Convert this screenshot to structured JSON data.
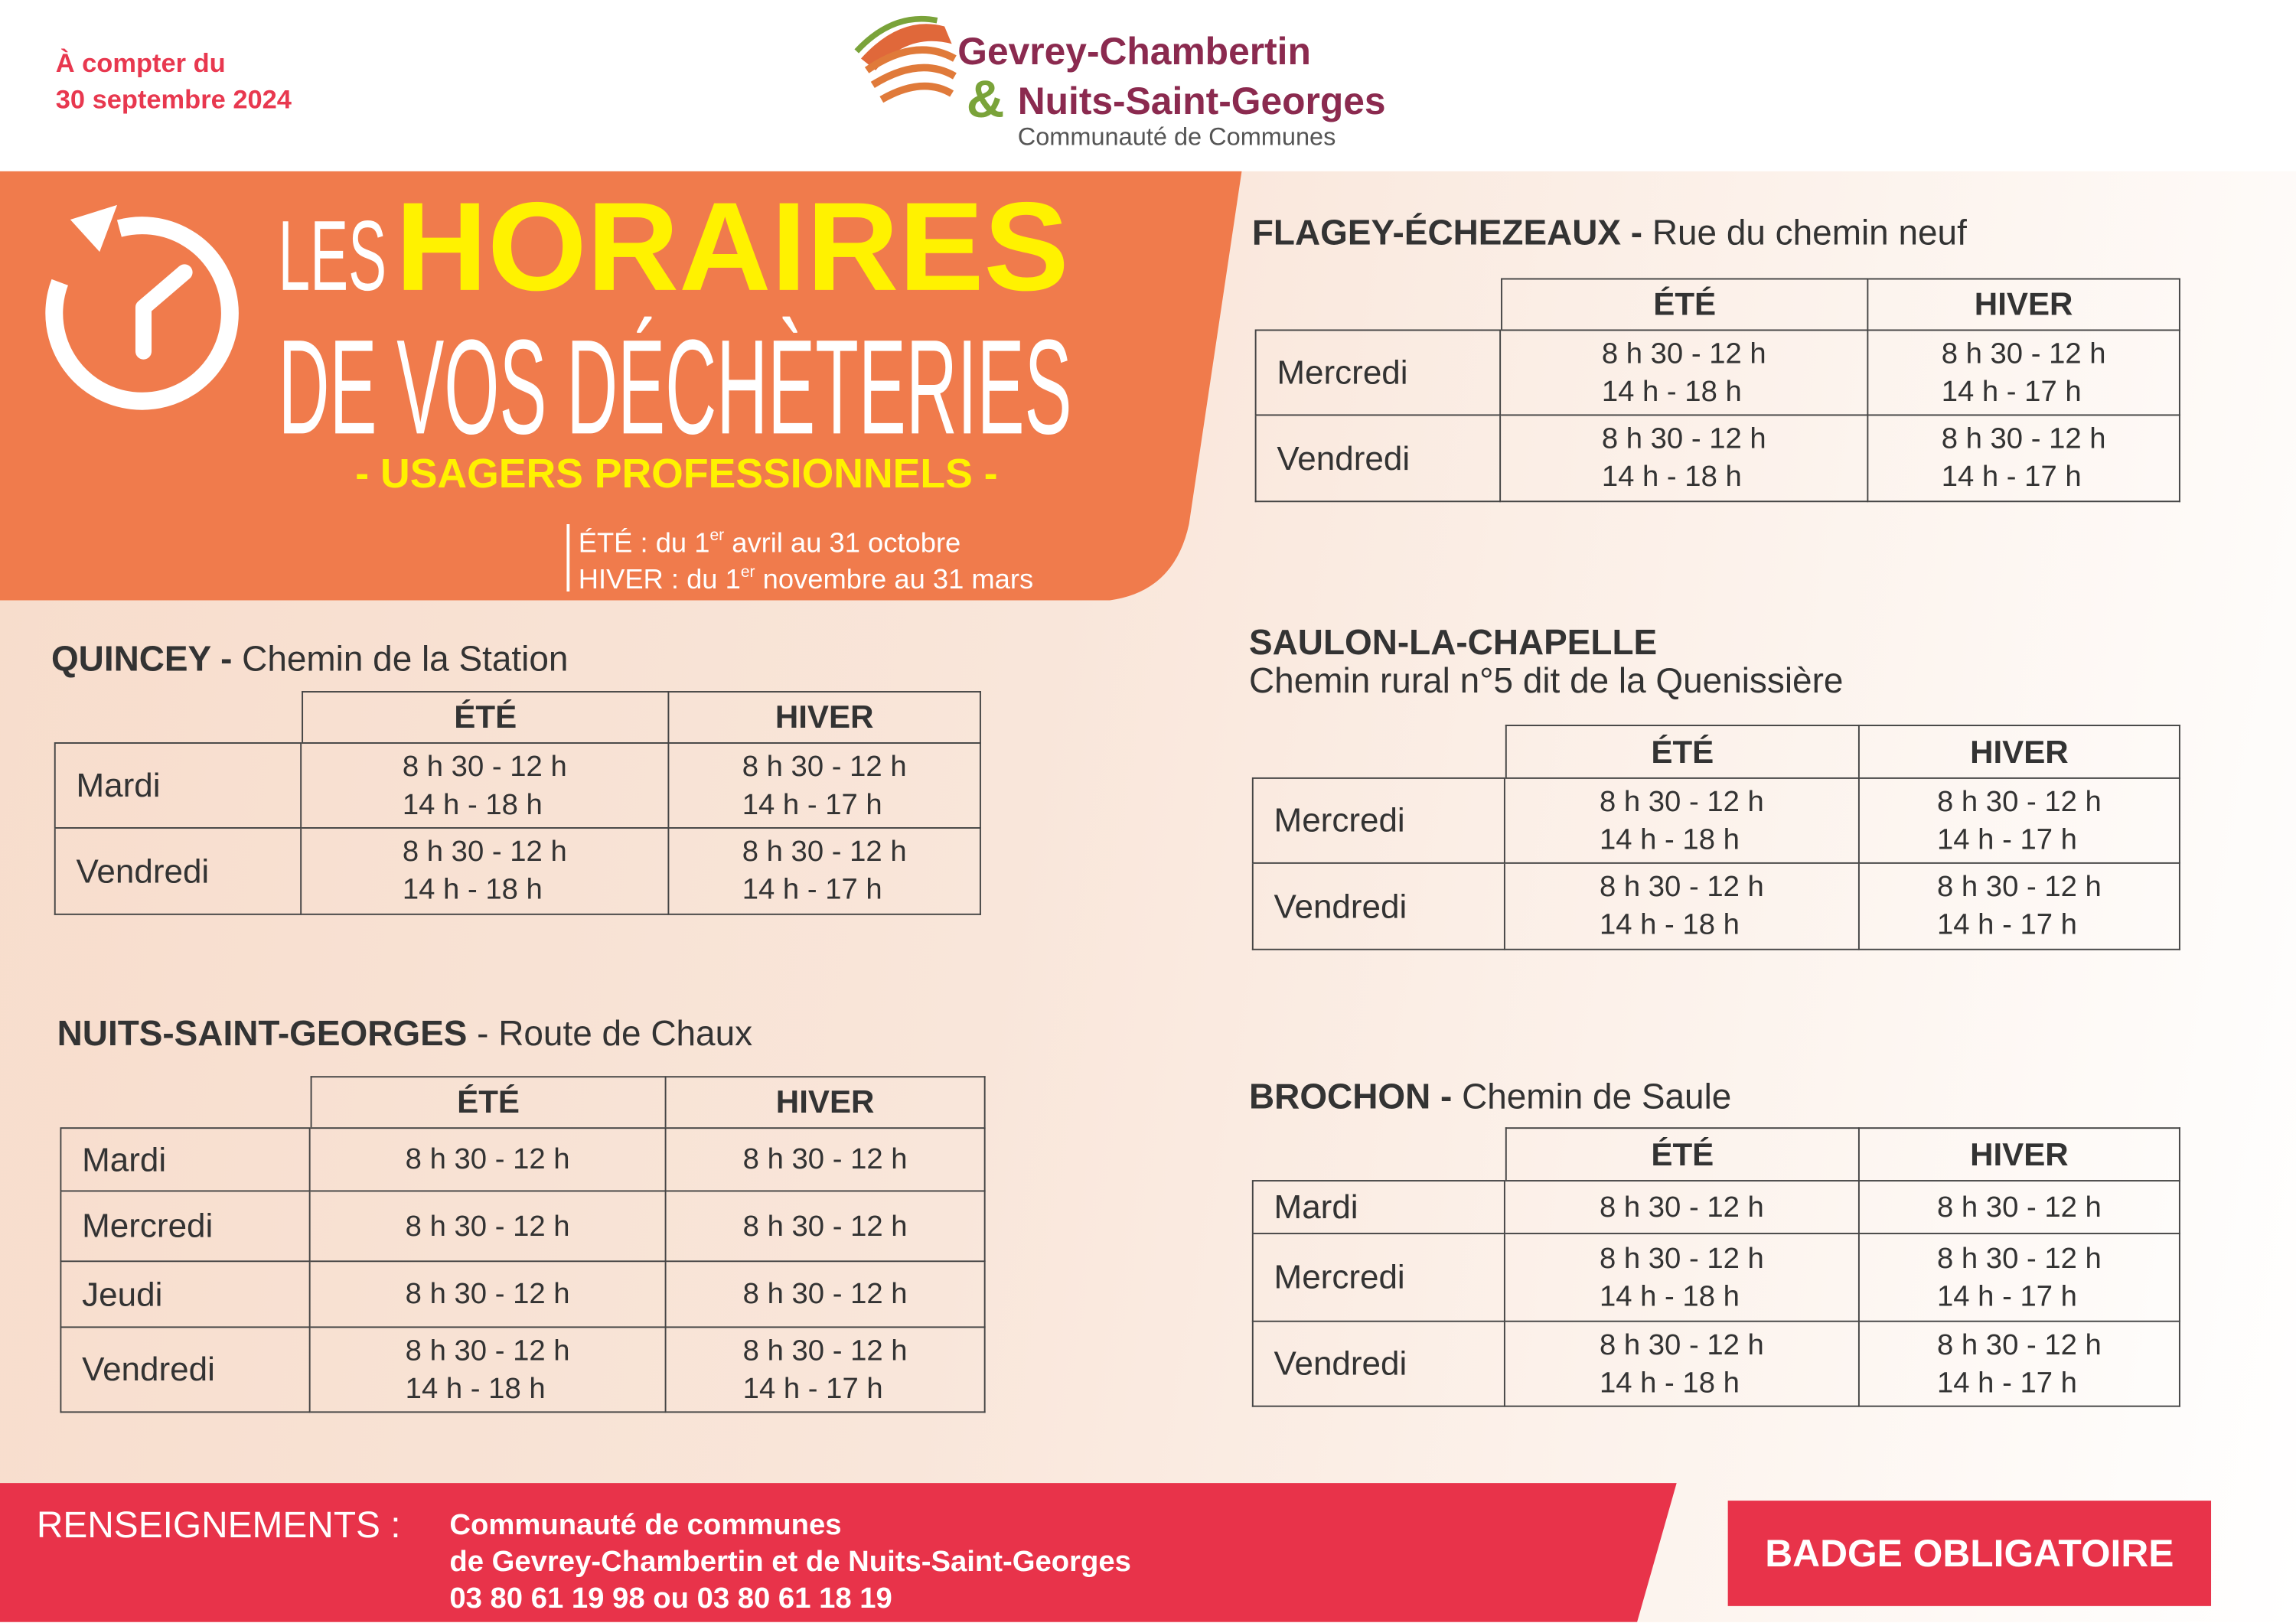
{
  "header": {
    "notice": [
      "À compter du",
      "30 septembre 2024"
    ],
    "logo": {
      "line1": "Gevrey-Chambertin",
      "amp": "&",
      "line2": "Nuits-Saint-Georges",
      "line3": "Communauté de Communes"
    }
  },
  "banner": {
    "les": "LES",
    "horaires": "HORAIRES",
    "subtitle_line": "DE VOS DÉCHÈTERIES",
    "audience": "- USAGERS PROFESSIONNELS -",
    "seasons": [
      {
        "prefix": "ÉTÉ : du 1",
        "sup": "er",
        "suffix": " avril au 31 octobre"
      },
      {
        "prefix": "HIVER : du 1",
        "sup": "er",
        "suffix": " novembre au 31 mars"
      }
    ]
  },
  "sites": [
    {
      "name": "QUINCEY -",
      "address": "Chemin de la Station",
      "columns": [
        "ÉTÉ",
        "HIVER"
      ],
      "rows": [
        {
          "day": "Mardi",
          "ete": [
            "8 h 30 - 12 h",
            "14 h - 18 h"
          ],
          "hiver": [
            "8 h 30 - 12 h",
            "14 h - 17 h"
          ]
        },
        {
          "day": "Vendredi",
          "ete": [
            "8 h 30 - 12 h",
            "14 h - 18 h"
          ],
          "hiver": [
            "8 h 30 - 12 h",
            "14 h - 17 h"
          ]
        }
      ]
    },
    {
      "name": "NUITS-SAINT-GEORGES",
      "address": "- Route de Chaux",
      "columns": [
        "ÉTÉ",
        "HIVER"
      ],
      "rows": [
        {
          "day": "Mardi",
          "ete": [
            "8 h 30 - 12 h"
          ],
          "hiver": [
            "8 h 30 - 12 h"
          ]
        },
        {
          "day": "Mercredi",
          "ete": [
            "8 h 30 - 12 h"
          ],
          "hiver": [
            "8 h 30 - 12 h"
          ]
        },
        {
          "day": "Jeudi",
          "ete": [
            "8 h 30 - 12 h"
          ],
          "hiver": [
            "8 h 30 - 12 h"
          ]
        },
        {
          "day": "Vendredi",
          "ete": [
            "8 h 30 - 12 h",
            "14 h - 18 h"
          ],
          "hiver": [
            "8 h 30 - 12 h",
            "14 h - 17 h"
          ]
        }
      ]
    },
    {
      "name": "FLAGEY-ÉCHEZEAUX -",
      "address": "Rue du chemin neuf",
      "columns": [
        "ÉTÉ",
        "HIVER"
      ],
      "rows": [
        {
          "day": "Mercredi",
          "ete": [
            "8 h 30 - 12 h",
            "14 h - 18 h"
          ],
          "hiver": [
            "8 h 30 - 12 h",
            "14 h - 17 h"
          ]
        },
        {
          "day": "Vendredi",
          "ete": [
            "8 h 30 - 12 h",
            "14 h - 18 h"
          ],
          "hiver": [
            "8 h 30 - 12 h",
            "14 h - 17 h"
          ]
        }
      ]
    },
    {
      "name": "SAULON-LA-CHAPELLE",
      "address": "Chemin rural n°5 dit de la Quenissière",
      "columns": [
        "ÉTÉ",
        "HIVER"
      ],
      "rows": [
        {
          "day": "Mercredi",
          "ete": [
            "8 h 30 - 12 h",
            "14 h - 18 h"
          ],
          "hiver": [
            "8 h 30 - 12 h",
            "14 h - 17 h"
          ]
        },
        {
          "day": "Vendredi",
          "ete": [
            "8 h 30 - 12 h",
            "14 h - 18 h"
          ],
          "hiver": [
            "8 h 30 - 12 h",
            "14 h - 17 h"
          ]
        }
      ]
    },
    {
      "name": "BROCHON -",
      "address": "Chemin de Saule",
      "columns": [
        "ÉTÉ",
        "HIVER"
      ],
      "rows": [
        {
          "day": "Mardi",
          "ete": [
            "8 h 30 - 12 h"
          ],
          "hiver": [
            "8 h 30 - 12 h"
          ]
        },
        {
          "day": "Mercredi",
          "ete": [
            "8 h 30 - 12 h",
            "14 h - 18 h"
          ],
          "hiver": [
            "8 h 30 - 12 h",
            "14 h - 17 h"
          ]
        },
        {
          "day": "Vendredi",
          "ete": [
            "8 h 30 - 12 h",
            "14 h - 18 h"
          ],
          "hiver": [
            "8 h 30 - 12 h",
            "14 h - 17 h"
          ]
        }
      ]
    }
  ],
  "footer": {
    "label": "RENSEIGNEMENTS :",
    "contact": [
      "Communauté de communes",
      "de Gevrey-Chambertin et de Nuits-Saint-Georges",
      "03 80 61 19 98 ou 03 80 61 18 19"
    ],
    "badge": "BADGE OBLIGATOIRE"
  }
}
